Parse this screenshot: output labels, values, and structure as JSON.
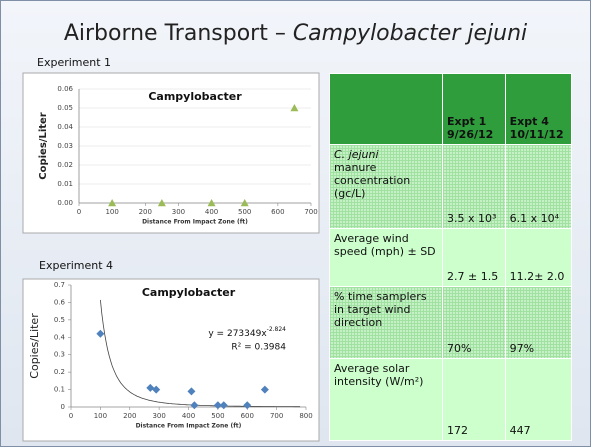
{
  "slide_title": {
    "main": "Airborne Transport – ",
    "italic": "Campylobacter jejuni"
  },
  "chart_data": [
    {
      "type": "scatter",
      "caption": "Experiment 1",
      "title": "Campylobacter",
      "x_label": "Distance From Impact Zone (ft)",
      "y_label": "Copies/Liter",
      "marker": "triangle",
      "color": "#9bbb59",
      "grid": true,
      "x": [
        100,
        250,
        400,
        500,
        650
      ],
      "values": [
        0,
        0,
        0,
        0,
        0.05
      ],
      "xlim": [
        0,
        700
      ],
      "xticks": [
        0,
        100,
        200,
        300,
        400,
        500,
        600,
        700
      ],
      "ylim": [
        0,
        0.06
      ],
      "yticks": [
        {
          "value": 0,
          "label": "0.00"
        },
        {
          "value": 0.01,
          "label": "0.01"
        },
        {
          "value": 0.02,
          "label": "0.02"
        },
        {
          "value": 0.03,
          "label": "0.03"
        },
        {
          "value": 0.04,
          "label": "0.04"
        },
        {
          "value": 0.05,
          "label": "0.05"
        },
        {
          "value": 0.06,
          "label": "0.06"
        }
      ]
    },
    {
      "type": "scatter",
      "caption": "Experiment 4",
      "title": "Campylobacter",
      "x_label": "Distance From Impact Zone (ft)",
      "y_label": "Copies/Liter",
      "marker": "diamond",
      "color": "#4f81bd",
      "grid": false,
      "x": [
        100,
        270,
        290,
        410,
        420,
        500,
        520,
        600,
        660
      ],
      "values": [
        0.42,
        0.11,
        0.1,
        0.09,
        0.01,
        0.01,
        0.01,
        0.01,
        0.1
      ],
      "xlim": [
        0,
        800
      ],
      "xticks": [
        0,
        100,
        200,
        300,
        400,
        500,
        600,
        700,
        800
      ],
      "ylim": [
        0,
        0.7
      ],
      "yticks": [
        0,
        0.1,
        0.2,
        0.3,
        0.4,
        0.5,
        0.6,
        0.7
      ],
      "trendline": {
        "a": 273349,
        "b": -2.824,
        "equation": "y = 273349x",
        "exponent": "-2.824",
        "r2": "R² = 0.3984"
      }
    }
  ],
  "table": {
    "header": [
      [
        "Expt 1",
        "9/26/12"
      ],
      [
        "Expt 4",
        "10/11/12"
      ]
    ],
    "rows": [
      [
        [
          "C. jejuni",
          "manure concentration (gc/L)"
        ],
        "3.5 x 10³",
        "6.1 x 10⁴"
      ],
      [
        [
          "",
          "Average wind speed (mph) ± SD"
        ],
        "2.7 ± 1.5",
        "11.2± 2.0"
      ],
      [
        [
          "",
          "% time samplers in target wind direction"
        ],
        "70%",
        "97%"
      ],
      [
        [
          "",
          "Average solar intensity (W/m²)"
        ],
        "172",
        "447"
      ]
    ]
  }
}
